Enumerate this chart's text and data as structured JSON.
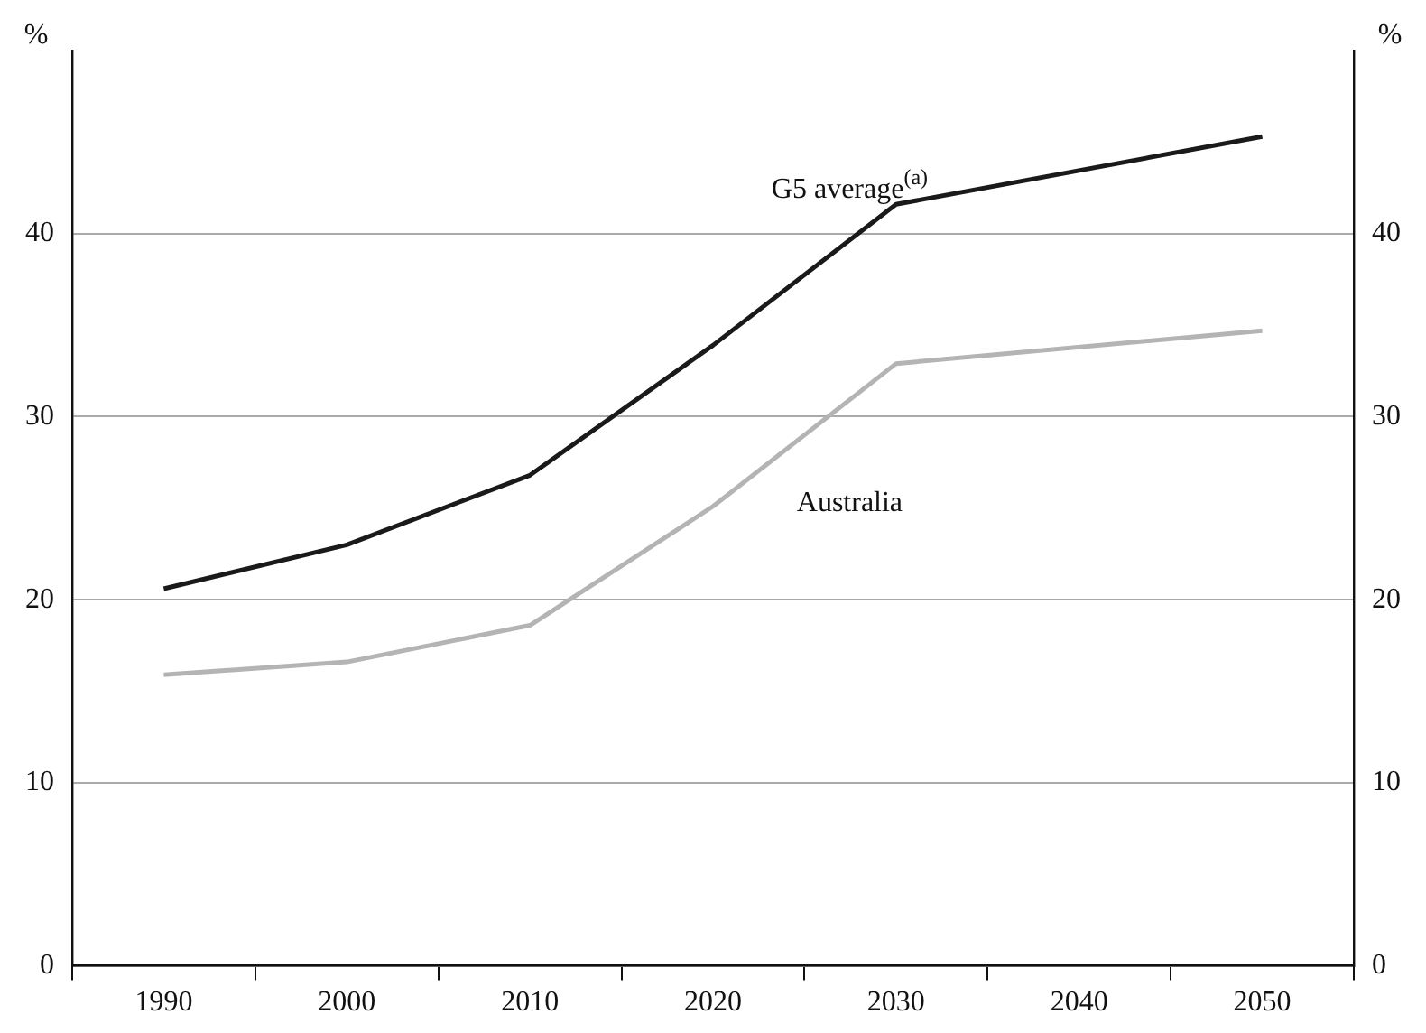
{
  "chart_data": {
    "type": "line",
    "categories": [
      "1990",
      "2000",
      "2010",
      "2020",
      "2030",
      "2040",
      "2050"
    ],
    "series": [
      {
        "name": "G5 average$^{(a)}$",
        "color": "#1a1a1a",
        "values": [
          20.6,
          23.0,
          26.8,
          33.9,
          41.6,
          null,
          45.3
        ]
      },
      {
        "name": "Australia",
        "color": "#b4b4b4",
        "values": [
          15.9,
          16.6,
          18.6,
          25.1,
          32.9,
          null,
          34.7
        ]
      }
    ],
    "ylabel": "%",
    "y2label": "%",
    "ylim": [
      0,
      50
    ],
    "yticks": [
      0,
      10,
      20,
      30,
      40
    ],
    "y2lim": [
      0,
      50
    ],
    "y2ticks": [
      0,
      10,
      20,
      30,
      40
    ],
    "grid": "y",
    "legend": false,
    "marker": "none",
    "line_style": "solid"
  }
}
